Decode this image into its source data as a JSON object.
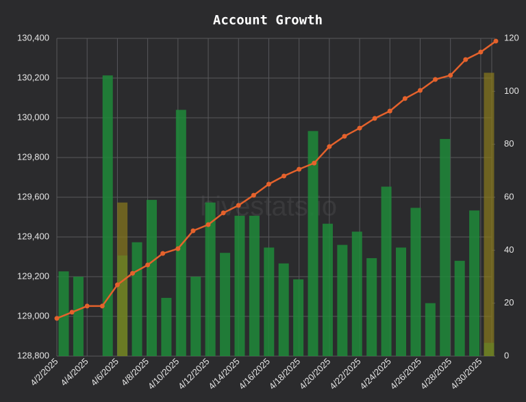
{
  "chart_data": {
    "type": "bar",
    "title": "Account Growth",
    "watermark": "hivestats.io",
    "categories": [
      "4/2/2025",
      null,
      "4/4/2025",
      null,
      "4/6/2025",
      null,
      "4/8/2025",
      null,
      "4/10/2025",
      null,
      "4/12/2025",
      null,
      "4/14/2025",
      null,
      "4/16/2025",
      null,
      "4/18/2025",
      null,
      "4/20/2025",
      null,
      "4/22/2025",
      null,
      "4/24/2025",
      null,
      "4/26/2025",
      null,
      "4/28/2025",
      null,
      "4/30/2025",
      null
    ],
    "series": [
      {
        "type": "bar",
        "axis": "y2",
        "color": "#1f8a3a",
        "values": [
          32,
          30,
          0,
          106,
          38,
          43,
          59,
          22,
          93,
          30,
          58,
          39,
          53,
          53,
          41,
          35,
          29,
          85,
          50,
          42,
          47,
          37,
          64,
          41,
          56,
          20,
          82,
          36,
          55,
          5
        ]
      },
      {
        "type": "bar",
        "axis": "y2",
        "color": "#8a7a1c",
        "values": [
          null,
          null,
          null,
          null,
          58,
          null,
          null,
          null,
          null,
          null,
          null,
          null,
          null,
          null,
          null,
          null,
          null,
          null,
          null,
          null,
          null,
          null,
          null,
          null,
          null,
          null,
          null,
          null,
          null,
          107
        ]
      },
      {
        "type": "line",
        "axis": "y",
        "color": "#e5622c",
        "values": [
          128990,
          129021,
          129052,
          129052,
          129159,
          129217,
          129259,
          129317,
          129341,
          129431,
          129462,
          129521,
          129559,
          129610,
          129666,
          129707,
          129741,
          129772,
          129855,
          129907,
          129948,
          129997,
          130034,
          130097,
          130138,
          130193,
          130214,
          130293,
          130331,
          130386
        ]
      }
    ],
    "ylim": [
      128800,
      130400
    ],
    "yticks": [
      {
        "value": 128800,
        "label": "128,800"
      },
      {
        "value": 129000,
        "label": "129,000"
      },
      {
        "value": 129200,
        "label": "129,200"
      },
      {
        "value": 129400,
        "label": "129,400"
      },
      {
        "value": 129600,
        "label": "129,600"
      },
      {
        "value": 129800,
        "label": "129,800"
      },
      {
        "value": 130000,
        "label": "130,000"
      },
      {
        "value": 130200,
        "label": "130,200"
      },
      {
        "value": 130400,
        "label": "130,400"
      }
    ],
    "y2lim": [
      0,
      120
    ],
    "y2ticks": [
      0,
      20,
      40,
      60,
      80,
      100,
      120
    ],
    "grid": true
  }
}
